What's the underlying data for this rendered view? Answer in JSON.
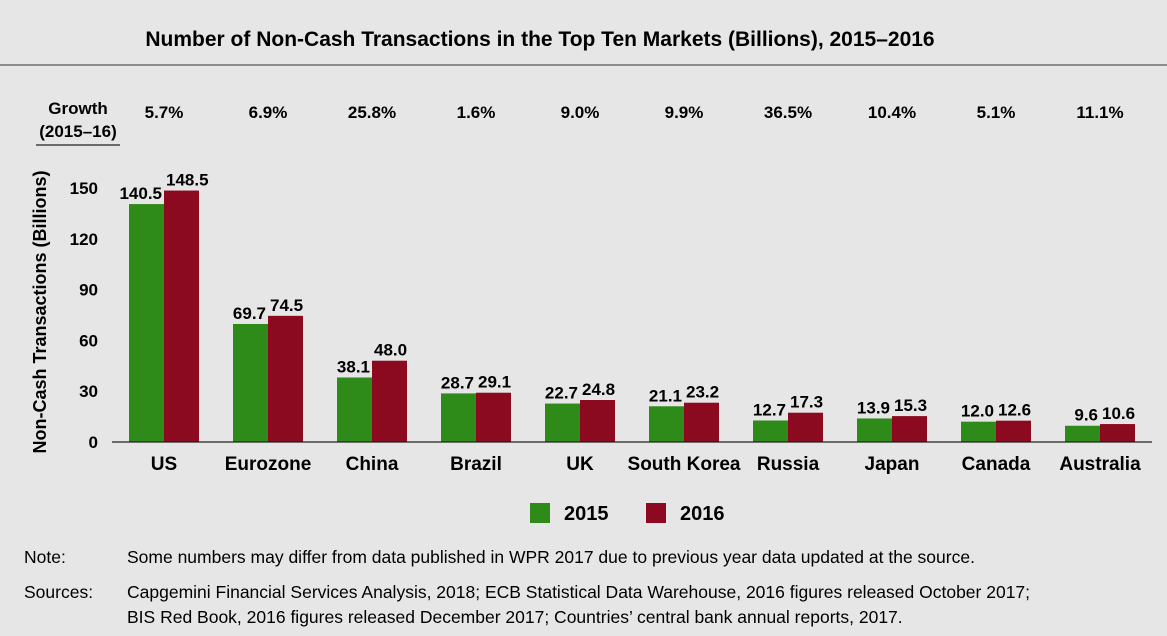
{
  "chart_data": {
    "type": "bar",
    "title": "Number of Non-Cash Transactions in the Top Ten Markets (Billions), 2015–2016",
    "ylabel": "Non-Cash Transactions (Billions)",
    "xlabel": "",
    "ylim": [
      0,
      150
    ],
    "yticks": [
      0,
      30,
      60,
      90,
      120,
      150
    ],
    "categories": [
      "US",
      "Eurozone",
      "China",
      "Brazil",
      "UK",
      "South Korea",
      "Russia",
      "Japan",
      "Canada",
      "Australia"
    ],
    "series": [
      {
        "name": "2015",
        "color": "#2e8b1a",
        "values": [
          140.5,
          69.7,
          38.1,
          28.7,
          22.7,
          21.1,
          12.7,
          13.9,
          12.0,
          9.6
        ]
      },
      {
        "name": "2016",
        "color": "#8b0a1f",
        "values": [
          148.5,
          74.5,
          48.0,
          29.1,
          24.8,
          23.2,
          17.3,
          15.3,
          12.6,
          10.6
        ]
      }
    ],
    "data_labels": [
      [
        "140.5",
        "69.7",
        "38.1",
        "28.7",
        "22.7",
        "21.1",
        "12.7",
        "13.9",
        "12.0",
        "9.6"
      ],
      [
        "148.5",
        "74.5",
        "48.0",
        "29.1",
        "24.8",
        "23.2",
        "17.3",
        "15.3",
        "12.6",
        "10.6"
      ]
    ],
    "growth": {
      "label_line1": "Growth",
      "label_line2": "(2015–16)",
      "values": [
        "5.7%",
        "6.9%",
        "25.8%",
        "1.6%",
        "9.0%",
        "9.9%",
        "36.5%",
        "10.4%",
        "5.1%",
        "11.1%"
      ]
    },
    "legend": {
      "placement": "bottom-center",
      "entries": [
        "2015",
        "2016"
      ]
    },
    "grid": false
  },
  "footnotes": {
    "note_label": "Note:",
    "note_text": "Some numbers may differ from data published in WPR 2017 due to previous year data updated at the source.",
    "sources_label": "Sources:",
    "sources_line1": "Capgemini Financial Services Analysis, 2018; ECB Statistical Data Warehouse, 2016 figures released October 2017;",
    "sources_line2": "BIS Red Book, 2016 figures released December 2017; Countries’ central bank annual reports, 2017."
  }
}
